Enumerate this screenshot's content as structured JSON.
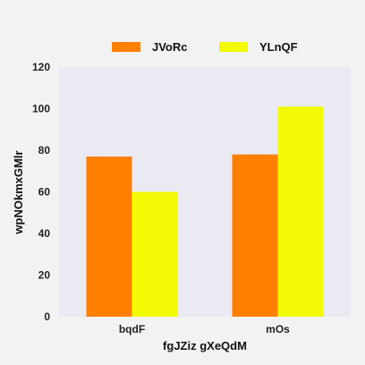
{
  "chart_data": {
    "type": "bar",
    "categories": [
      "bqdF",
      "mOs"
    ],
    "series": [
      {
        "name": "JVoRc",
        "values": [
          77,
          78
        ],
        "color": "#ff7f00"
      },
      {
        "name": "YLnQF",
        "values": [
          60,
          101
        ],
        "color": "#f2fb04"
      }
    ],
    "xlabel": "fgJZiz gXeQdM",
    "ylabel": "wpNOkmxGMlr",
    "ylim": [
      0,
      120
    ],
    "yticks": [
      0,
      20,
      40,
      60,
      80,
      100,
      120
    ],
    "grid": false,
    "legend_position": "top",
    "plot_background": "#eaeaf2"
  }
}
